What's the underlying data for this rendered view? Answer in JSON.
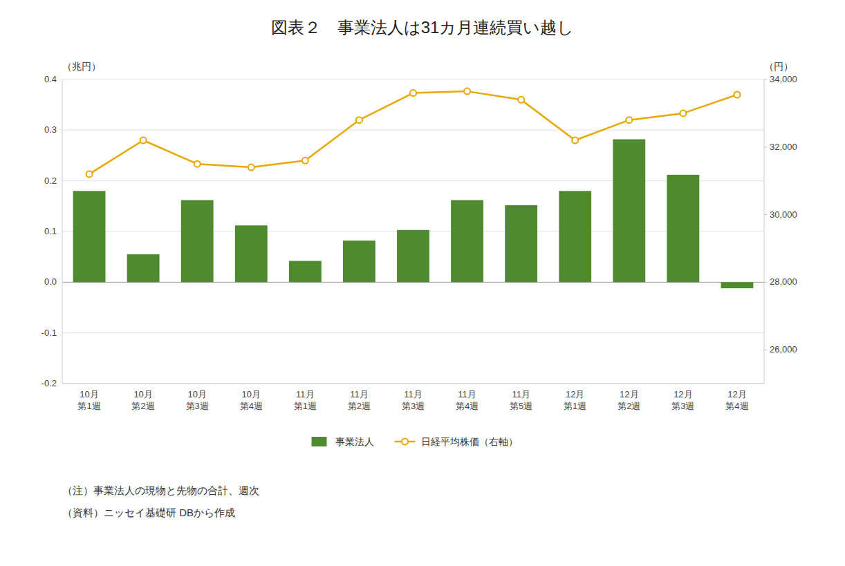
{
  "chart_data": {
    "type": "bar",
    "title": "図表２　事業法人は31カ月連続買い越し",
    "categories": [
      "10月\n第1週",
      "10月\n第2週",
      "10月\n第3週",
      "10月\n第4週",
      "11月\n第1週",
      "11月\n第2週",
      "11月\n第3週",
      "11月\n第4週",
      "11月\n第5週",
      "12月\n第1週",
      "12月\n第2週",
      "12月\n第3週",
      "12月\n第4週"
    ],
    "series": [
      {
        "name": "事業法人",
        "type": "bar",
        "color": "#4e8b2e",
        "values": [
          0.18,
          0.055,
          0.162,
          0.112,
          0.042,
          0.082,
          0.103,
          0.162,
          0.152,
          0.18,
          0.282,
          0.212,
          -0.012
        ]
      },
      {
        "name": "日経平均株価（右軸）",
        "type": "line",
        "axis": "y2",
        "color": "#e8a800",
        "marker": "circle",
        "values": [
          31200,
          32200,
          31500,
          31400,
          31600,
          32800,
          33600,
          33650,
          33400,
          32200,
          32800,
          33000,
          33550
        ]
      }
    ],
    "ylabel": "（兆円）",
    "y2label": "（円）",
    "ylim": [
      -0.2,
      0.4
    ],
    "yticks": [
      -0.2,
      -0.1,
      {
        "value": 0,
        "label": "0.0"
      },
      0.1,
      0.2,
      0.3,
      0.4
    ],
    "y2lim": [
      25000,
      34000
    ],
    "y2ticks": [
      {
        "value": 26000,
        "label": "26,000"
      },
      {
        "value": 28000,
        "label": "28,000"
      },
      {
        "value": 30000,
        "label": "30,000"
      },
      {
        "value": 32000,
        "label": "32,000"
      },
      {
        "value": 34000,
        "label": "34,000"
      }
    ],
    "annotations": [
      "（注）事業法人の現物と先物の合計、週次",
      "（資料）ニッセイ基礎研 DBから作成"
    ],
    "grid": true,
    "legend": "bottom"
  }
}
